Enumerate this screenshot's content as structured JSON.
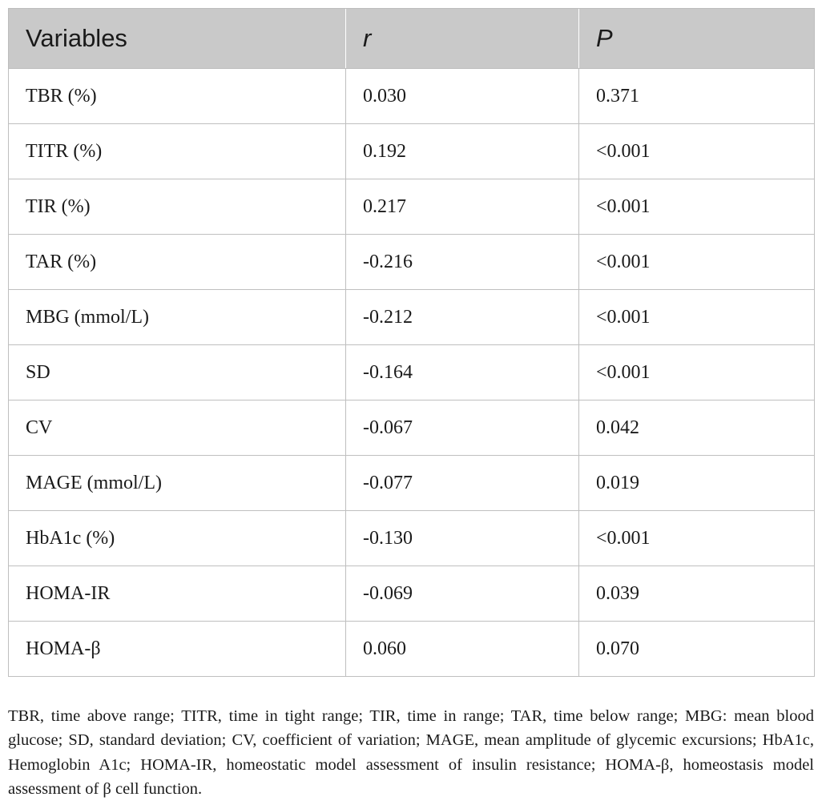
{
  "table": {
    "headers": [
      "Variables",
      "r",
      "P"
    ],
    "rows": [
      [
        "TBR (%)",
        "0.030",
        "0.371"
      ],
      [
        "TITR (%)",
        "0.192",
        "<0.001"
      ],
      [
        "TIR (%)",
        "0.217",
        "<0.001"
      ],
      [
        "TAR (%)",
        "-0.216",
        "<0.001"
      ],
      [
        "MBG (mmol/L)",
        "-0.212",
        "<0.001"
      ],
      [
        "SD",
        "-0.164",
        "<0.001"
      ],
      [
        "CV",
        "-0.067",
        "0.042"
      ],
      [
        "MAGE (mmol/L)",
        "-0.077",
        "0.019"
      ],
      [
        "HbA1c (%)",
        "-0.130",
        "<0.001"
      ],
      [
        "HOMA-IR",
        "-0.069",
        "0.039"
      ],
      [
        "HOMA-β",
        "0.060",
        "0.070"
      ]
    ]
  },
  "footnote": "TBR, time above range; TITR, time in tight range; TIR, time in range; TAR, time below range; MBG: mean blood glucose; SD, standard deviation; CV, coefficient of variation; MAGE, mean amplitude of glycemic excursions; HbA1c, Hemoglobin A1c; HOMA-IR, homeostatic model assessment of insulin resistance; HOMA-β, homeostasis model assessment of β cell function.",
  "colors": {
    "header_background": "#c9c9c9",
    "grid_line": "#bfbfbf",
    "text": "#1a1a1a"
  }
}
